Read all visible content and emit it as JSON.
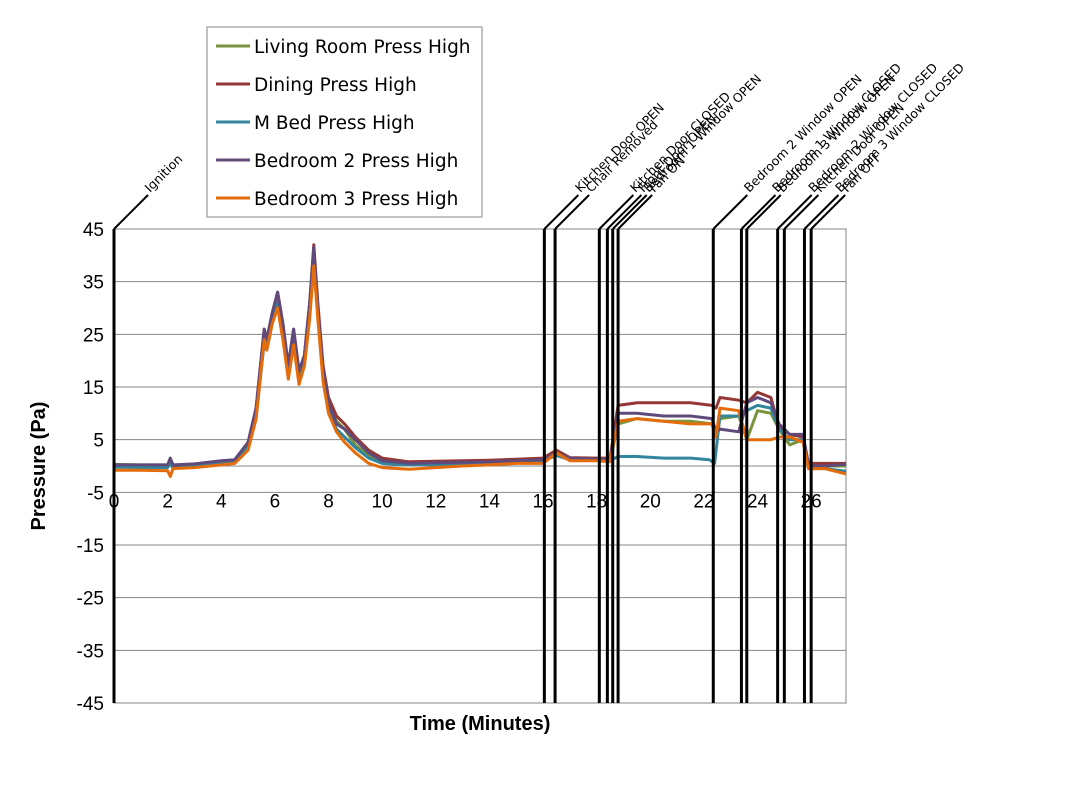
{
  "chart_data": {
    "type": "line",
    "title": "",
    "xlabel": "Time (Minutes)",
    "ylabel": "Pressure (Pa)",
    "xlim": [
      0,
      27.3
    ],
    "ylim": [
      -45,
      45
    ],
    "xticks": [
      0,
      2,
      4,
      6,
      8,
      10,
      12,
      14,
      16,
      18,
      20,
      22,
      24,
      26
    ],
    "yticks": [
      45,
      35,
      25,
      15,
      5,
      -5,
      -15,
      -25,
      -35,
      -45
    ],
    "grid": "horizontal",
    "legend_position": "top-left",
    "events": [
      {
        "t": 0.0,
        "label": "Ignition"
      },
      {
        "t": 16.05,
        "label": "Kitchen Door OPEN"
      },
      {
        "t": 16.45,
        "label": "Chair Removed"
      },
      {
        "t": 18.1,
        "label": "Kitchen Door CLOSED"
      },
      {
        "t": 18.4,
        "label": "Front Door OPEN"
      },
      {
        "t": 18.6,
        "label": "Bedroom 1 Window OPEN"
      },
      {
        "t": 18.8,
        "label": "Fan ON"
      },
      {
        "t": 22.35,
        "label": "Bedroom 2 Window OPEN"
      },
      {
        "t": 23.4,
        "label": "Bedroom 1 Window CLOSED"
      },
      {
        "t": 23.6,
        "label": "Bedroom 3 Window OPEN"
      },
      {
        "t": 24.75,
        "label": "Bedroom 2 Window CLOSED"
      },
      {
        "t": 25.0,
        "label": "Kitchen Door OPEN"
      },
      {
        "t": 25.75,
        "label": "Bedroom 3 Window CLOSED"
      },
      {
        "t": 26.0,
        "label": "Fan OFF"
      }
    ],
    "series": [
      {
        "name": "Living Room Press High",
        "color": "#77933C",
        "points": [
          [
            0,
            0.3
          ],
          [
            1.0,
            0.2
          ],
          [
            2.0,
            0.2
          ],
          [
            2.1,
            1.0
          ],
          [
            2.2,
            0.0
          ],
          [
            3.0,
            0.2
          ],
          [
            4.0,
            0.8
          ],
          [
            4.5,
            1.0
          ],
          [
            5.0,
            4.0
          ],
          [
            5.3,
            10.0
          ],
          [
            5.6,
            25.0
          ],
          [
            5.7,
            23.0
          ],
          [
            5.9,
            28.0
          ],
          [
            6.1,
            32.5
          ],
          [
            6.3,
            26.0
          ],
          [
            6.5,
            18.0
          ],
          [
            6.7,
            25.0
          ],
          [
            6.9,
            17.0
          ],
          [
            7.1,
            20.0
          ],
          [
            7.3,
            30.0
          ],
          [
            7.45,
            41.0
          ],
          [
            7.6,
            30.0
          ],
          [
            7.8,
            18.0
          ],
          [
            8.0,
            12.0
          ],
          [
            8.3,
            8.5
          ],
          [
            8.6,
            7.0
          ],
          [
            9.0,
            4.0
          ],
          [
            9.5,
            2.0
          ],
          [
            10.0,
            1.0
          ],
          [
            11.0,
            0.5
          ],
          [
            12.0,
            0.6
          ],
          [
            13.0,
            0.7
          ],
          [
            14.0,
            0.8
          ],
          [
            15.0,
            1.0
          ],
          [
            16.0,
            1.3
          ],
          [
            16.5,
            2.5
          ],
          [
            17.0,
            1.3
          ],
          [
            18.0,
            1.2
          ],
          [
            18.5,
            1.0
          ],
          [
            18.8,
            8.0
          ],
          [
            19.5,
            9.0
          ],
          [
            20.5,
            8.5
          ],
          [
            21.5,
            8.5
          ],
          [
            22.3,
            8.0
          ],
          [
            22.45,
            6.0
          ],
          [
            22.6,
            9.0
          ],
          [
            23.3,
            9.5
          ],
          [
            23.6,
            5.0
          ],
          [
            24.0,
            10.5
          ],
          [
            24.5,
            10.0
          ],
          [
            24.8,
            7.0
          ],
          [
            25.2,
            4.0
          ],
          [
            25.7,
            5.0
          ],
          [
            25.9,
            0.0
          ],
          [
            26.5,
            0.0
          ],
          [
            27.3,
            0.0
          ]
        ]
      },
      {
        "name": "Dining Press High",
        "color": "#953735",
        "points": [
          [
            0,
            0.2
          ],
          [
            1.0,
            0.1
          ],
          [
            2.0,
            0.1
          ],
          [
            2.1,
            1.0
          ],
          [
            2.2,
            0.0
          ],
          [
            3.0,
            0.2
          ],
          [
            4.0,
            0.8
          ],
          [
            4.5,
            1.0
          ],
          [
            5.0,
            4.5
          ],
          [
            5.3,
            11.0
          ],
          [
            5.6,
            26.0
          ],
          [
            5.7,
            24.0
          ],
          [
            5.9,
            29.0
          ],
          [
            6.1,
            33.0
          ],
          [
            6.3,
            27.0
          ],
          [
            6.5,
            19.0
          ],
          [
            6.7,
            26.0
          ],
          [
            6.9,
            18.0
          ],
          [
            7.1,
            21.0
          ],
          [
            7.3,
            31.0
          ],
          [
            7.45,
            42.0
          ],
          [
            7.6,
            31.0
          ],
          [
            7.8,
            19.0
          ],
          [
            8.0,
            13.0
          ],
          [
            8.3,
            9.5
          ],
          [
            8.6,
            8.0
          ],
          [
            9.0,
            5.5
          ],
          [
            9.5,
            3.0
          ],
          [
            10.0,
            1.5
          ],
          [
            11.0,
            0.8
          ],
          [
            12.0,
            0.9
          ],
          [
            13.0,
            1.0
          ],
          [
            14.0,
            1.1
          ],
          [
            15.0,
            1.3
          ],
          [
            16.0,
            1.5
          ],
          [
            16.5,
            3.0
          ],
          [
            17.0,
            1.6
          ],
          [
            18.0,
            1.5
          ],
          [
            18.5,
            1.5
          ],
          [
            18.8,
            11.5
          ],
          [
            19.5,
            12.0
          ],
          [
            20.5,
            12.0
          ],
          [
            21.5,
            12.0
          ],
          [
            22.3,
            11.5
          ],
          [
            22.45,
            11.0
          ],
          [
            22.6,
            13.0
          ],
          [
            23.3,
            12.5
          ],
          [
            23.6,
            12.0
          ],
          [
            24.0,
            14.0
          ],
          [
            24.5,
            13.0
          ],
          [
            24.8,
            7.5
          ],
          [
            25.2,
            6.0
          ],
          [
            25.7,
            5.5
          ],
          [
            25.9,
            0.5
          ],
          [
            26.5,
            0.5
          ],
          [
            27.3,
            0.5
          ]
        ]
      },
      {
        "name": "M Bed Press High",
        "color": "#31859C",
        "points": [
          [
            0,
            -0.2
          ],
          [
            1.0,
            -0.3
          ],
          [
            2.0,
            -0.3
          ],
          [
            2.1,
            0.5
          ],
          [
            2.2,
            -0.5
          ],
          [
            3.0,
            0.0
          ],
          [
            4.0,
            0.5
          ],
          [
            4.5,
            0.8
          ],
          [
            5.0,
            3.5
          ],
          [
            5.3,
            9.0
          ],
          [
            5.6,
            23.5
          ],
          [
            5.7,
            22.0
          ],
          [
            5.9,
            27.0
          ],
          [
            6.1,
            31.0
          ],
          [
            6.3,
            25.0
          ],
          [
            6.5,
            17.0
          ],
          [
            6.7,
            24.0
          ],
          [
            6.9,
            16.0
          ],
          [
            7.1,
            19.0
          ],
          [
            7.3,
            29.0
          ],
          [
            7.45,
            39.0
          ],
          [
            7.6,
            29.0
          ],
          [
            7.8,
            17.0
          ],
          [
            8.0,
            11.0
          ],
          [
            8.3,
            7.0
          ],
          [
            8.6,
            5.5
          ],
          [
            9.0,
            3.5
          ],
          [
            9.5,
            1.5
          ],
          [
            10.0,
            0.5
          ],
          [
            11.0,
            0.2
          ],
          [
            12.0,
            0.3
          ],
          [
            13.0,
            0.4
          ],
          [
            14.0,
            0.5
          ],
          [
            15.0,
            0.8
          ],
          [
            16.0,
            1.0
          ],
          [
            16.5,
            2.0
          ],
          [
            17.0,
            1.2
          ],
          [
            18.0,
            1.1
          ],
          [
            18.5,
            1.0
          ],
          [
            18.8,
            1.8
          ],
          [
            19.5,
            1.8
          ],
          [
            20.5,
            1.5
          ],
          [
            21.5,
            1.5
          ],
          [
            22.2,
            1.2
          ],
          [
            22.4,
            0.5
          ],
          [
            22.6,
            9.5
          ],
          [
            23.3,
            9.5
          ],
          [
            23.6,
            10.5
          ],
          [
            24.0,
            11.5
          ],
          [
            24.5,
            11.0
          ],
          [
            24.8,
            7.0
          ],
          [
            25.2,
            5.0
          ],
          [
            25.7,
            5.0
          ],
          [
            25.9,
            -0.5
          ],
          [
            26.5,
            -0.5
          ],
          [
            27.3,
            -1.0
          ]
        ]
      },
      {
        "name": "Bedroom 2 Press High",
        "color": "#604A7B",
        "points": [
          [
            0,
            0.2
          ],
          [
            1.0,
            0.2
          ],
          [
            2.0,
            0.2
          ],
          [
            2.1,
            1.5
          ],
          [
            2.2,
            0.2
          ],
          [
            3.0,
            0.4
          ],
          [
            4.0,
            1.0
          ],
          [
            4.5,
            1.2
          ],
          [
            5.0,
            4.5
          ],
          [
            5.3,
            11.0
          ],
          [
            5.6,
            26.0
          ],
          [
            5.7,
            24.0
          ],
          [
            5.9,
            29.0
          ],
          [
            6.1,
            33.0
          ],
          [
            6.3,
            27.0
          ],
          [
            6.5,
            19.0
          ],
          [
            6.7,
            26.0
          ],
          [
            6.9,
            18.0
          ],
          [
            7.1,
            21.0
          ],
          [
            7.3,
            31.0
          ],
          [
            7.45,
            41.5
          ],
          [
            7.6,
            30.0
          ],
          [
            7.8,
            18.0
          ],
          [
            8.0,
            12.0
          ],
          [
            8.3,
            8.0
          ],
          [
            8.6,
            7.0
          ],
          [
            9.0,
            5.0
          ],
          [
            9.5,
            2.5
          ],
          [
            10.0,
            1.0
          ],
          [
            11.0,
            0.5
          ],
          [
            12.0,
            0.6
          ],
          [
            13.0,
            0.7
          ],
          [
            14.0,
            0.8
          ],
          [
            15.0,
            1.0
          ],
          [
            16.0,
            1.2
          ],
          [
            16.5,
            2.5
          ],
          [
            17.0,
            1.5
          ],
          [
            18.0,
            1.3
          ],
          [
            18.5,
            1.2
          ],
          [
            18.8,
            10.0
          ],
          [
            19.5,
            10.0
          ],
          [
            20.5,
            9.5
          ],
          [
            21.5,
            9.5
          ],
          [
            22.3,
            9.0
          ],
          [
            22.45,
            6.5
          ],
          [
            22.6,
            7.0
          ],
          [
            23.3,
            6.5
          ],
          [
            23.6,
            12.0
          ],
          [
            24.0,
            13.0
          ],
          [
            24.5,
            12.0
          ],
          [
            24.8,
            8.0
          ],
          [
            25.2,
            6.0
          ],
          [
            25.7,
            6.0
          ],
          [
            25.9,
            0.0
          ],
          [
            26.5,
            0.0
          ],
          [
            27.3,
            0.3
          ]
        ]
      },
      {
        "name": "Bedroom 3 Press High",
        "color": "#E46C0A",
        "points": [
          [
            0,
            -0.8
          ],
          [
            1.0,
            -0.8
          ],
          [
            2.0,
            -0.9
          ],
          [
            2.1,
            -2.0
          ],
          [
            2.2,
            -0.5
          ],
          [
            3.0,
            -0.3
          ],
          [
            4.0,
            0.2
          ],
          [
            4.5,
            0.5
          ],
          [
            5.0,
            3.0
          ],
          [
            5.3,
            9.0
          ],
          [
            5.6,
            24.0
          ],
          [
            5.7,
            22.0
          ],
          [
            5.9,
            27.0
          ],
          [
            6.1,
            30.0
          ],
          [
            6.3,
            24.0
          ],
          [
            6.5,
            16.5
          ],
          [
            6.7,
            23.0
          ],
          [
            6.9,
            15.5
          ],
          [
            7.1,
            19.0
          ],
          [
            7.3,
            28.0
          ],
          [
            7.45,
            38.0
          ],
          [
            7.6,
            28.0
          ],
          [
            7.8,
            16.0
          ],
          [
            8.0,
            10.0
          ],
          [
            8.3,
            6.5
          ],
          [
            8.6,
            4.5
          ],
          [
            9.0,
            2.5
          ],
          [
            9.5,
            0.5
          ],
          [
            10.0,
            -0.3
          ],
          [
            11.0,
            -0.6
          ],
          [
            12.0,
            -0.3
          ],
          [
            13.0,
            0.0
          ],
          [
            14.0,
            0.2
          ],
          [
            15.0,
            0.5
          ],
          [
            16.0,
            0.5
          ],
          [
            16.5,
            2.5
          ],
          [
            17.0,
            1.0
          ],
          [
            18.0,
            1.0
          ],
          [
            18.5,
            0.8
          ],
          [
            18.8,
            8.5
          ],
          [
            19.5,
            9.0
          ],
          [
            20.5,
            8.5
          ],
          [
            21.5,
            8.0
          ],
          [
            22.3,
            8.0
          ],
          [
            22.45,
            5.5
          ],
          [
            22.6,
            11.0
          ],
          [
            23.3,
            10.5
          ],
          [
            23.6,
            5.0
          ],
          [
            24.0,
            5.0
          ],
          [
            24.5,
            5.0
          ],
          [
            24.8,
            5.5
          ],
          [
            25.2,
            5.5
          ],
          [
            25.7,
            4.5
          ],
          [
            25.9,
            -0.5
          ],
          [
            26.5,
            -0.5
          ],
          [
            27.3,
            -1.5
          ]
        ]
      }
    ]
  }
}
